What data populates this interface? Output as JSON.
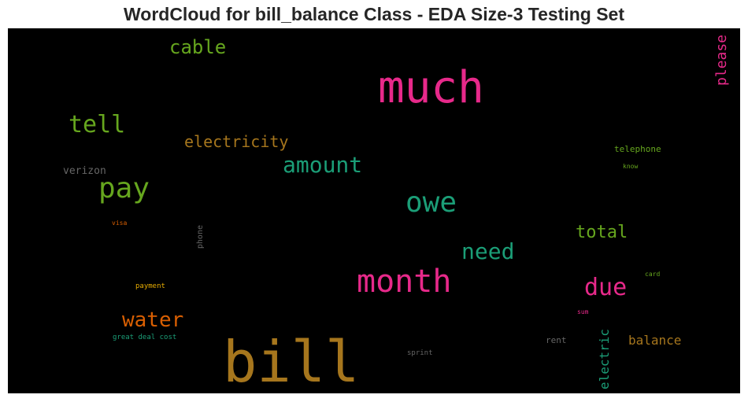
{
  "chart_data": {
    "type": "wordcloud",
    "title": "WordCloud for bill_balance Class - EDA Size-3 Testing Set",
    "background": "#000000",
    "words": [
      {
        "text": "bill",
        "color": "#a6761d",
        "vertical": false
      },
      {
        "text": "much",
        "color": "#e7298a",
        "vertical": false
      },
      {
        "text": "month",
        "color": "#e7298a",
        "vertical": false
      },
      {
        "text": "owe",
        "color": "#1b9e77",
        "vertical": false
      },
      {
        "text": "pay",
        "color": "#66a61e",
        "vertical": false
      },
      {
        "text": "tell",
        "color": "#66a61e",
        "vertical": false
      },
      {
        "text": "amount",
        "color": "#1b9e77",
        "vertical": false
      },
      {
        "text": "need",
        "color": "#1b9e77",
        "vertical": false
      },
      {
        "text": "due",
        "color": "#e7298a",
        "vertical": false
      },
      {
        "text": "water",
        "color": "#d95f02",
        "vertical": false
      },
      {
        "text": "cable",
        "color": "#66a61e",
        "vertical": false
      },
      {
        "text": "electricity",
        "color": "#a6761d",
        "vertical": false
      },
      {
        "text": "total",
        "color": "#66a61e",
        "vertical": false
      },
      {
        "text": "please",
        "color": "#e7298a",
        "vertical": true
      },
      {
        "text": "balance",
        "color": "#a6761d",
        "vertical": false
      },
      {
        "text": "electric",
        "color": "#1b9e77",
        "vertical": true
      },
      {
        "text": "verizon",
        "color": "#666666",
        "vertical": false
      },
      {
        "text": "telephone",
        "color": "#66a61e",
        "vertical": false
      },
      {
        "text": "phone",
        "color": "#666666",
        "vertical": true
      },
      {
        "text": "rent",
        "color": "#666666",
        "vertical": false
      },
      {
        "text": "know",
        "color": "#66a61e",
        "vertical": false
      },
      {
        "text": "visa",
        "color": "#d95f02",
        "vertical": false
      },
      {
        "text": "payment",
        "color": "#e6ab02",
        "vertical": false
      },
      {
        "text": "card",
        "color": "#66a61e",
        "vertical": false
      },
      {
        "text": "sum",
        "color": "#e7298a",
        "vertical": false
      },
      {
        "text": "great deal cost",
        "color": "#1b9e77",
        "vertical": false
      },
      {
        "text": "sprint",
        "color": "#666666",
        "vertical": false
      }
    ]
  }
}
